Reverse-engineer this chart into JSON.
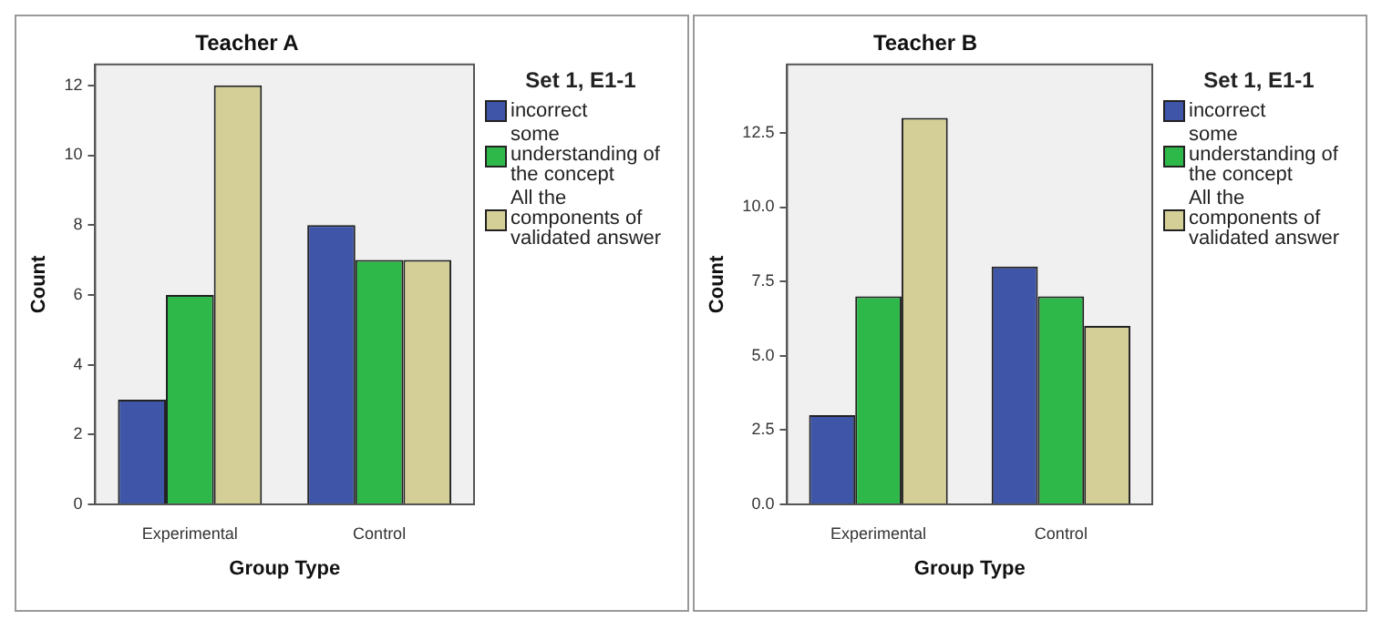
{
  "chart_data": [
    {
      "type": "bar",
      "title": "Teacher A",
      "xlabel": "Group Type",
      "ylabel": "Count",
      "legend_title": "Set 1, E1-1",
      "legend": "right",
      "grid": false,
      "categories": [
        "Experimental",
        "Control"
      ],
      "ylim": [
        0,
        12.6
      ],
      "yticks": [
        0,
        2,
        4,
        6,
        8,
        10,
        12
      ],
      "series": [
        {
          "name": "incorrect",
          "color": "#3e55a8",
          "values": [
            3,
            8
          ]
        },
        {
          "name": "some understanding of the concept",
          "color": "#2fb84a",
          "values": [
            6,
            7
          ]
        },
        {
          "name": "All the components of validated answer",
          "color": "#d3cf97",
          "values": [
            12,
            7
          ]
        }
      ]
    },
    {
      "type": "bar",
      "title": "Teacher B",
      "xlabel": "Group Type",
      "ylabel": "Count",
      "legend_title": "Set 1, E1-1",
      "legend": "right",
      "grid": false,
      "categories": [
        "Experimental",
        "Control"
      ],
      "ylim": [
        0,
        14.8
      ],
      "yticks": [
        {
          "value": 0,
          "label": "0.0"
        },
        2.5,
        {
          "value": 5,
          "label": "5.0"
        },
        7.5,
        {
          "value": 10,
          "label": "10.0"
        },
        12.5
      ],
      "series": [
        {
          "name": "incorrect",
          "color": "#3e55a8",
          "values": [
            3,
            8
          ]
        },
        {
          "name": "some understanding of the concept",
          "color": "#2fb84a",
          "values": [
            7,
            7
          ]
        },
        {
          "name": "All the components of validated answer",
          "color": "#d3cf97",
          "values": [
            13,
            6
          ]
        }
      ]
    }
  ]
}
